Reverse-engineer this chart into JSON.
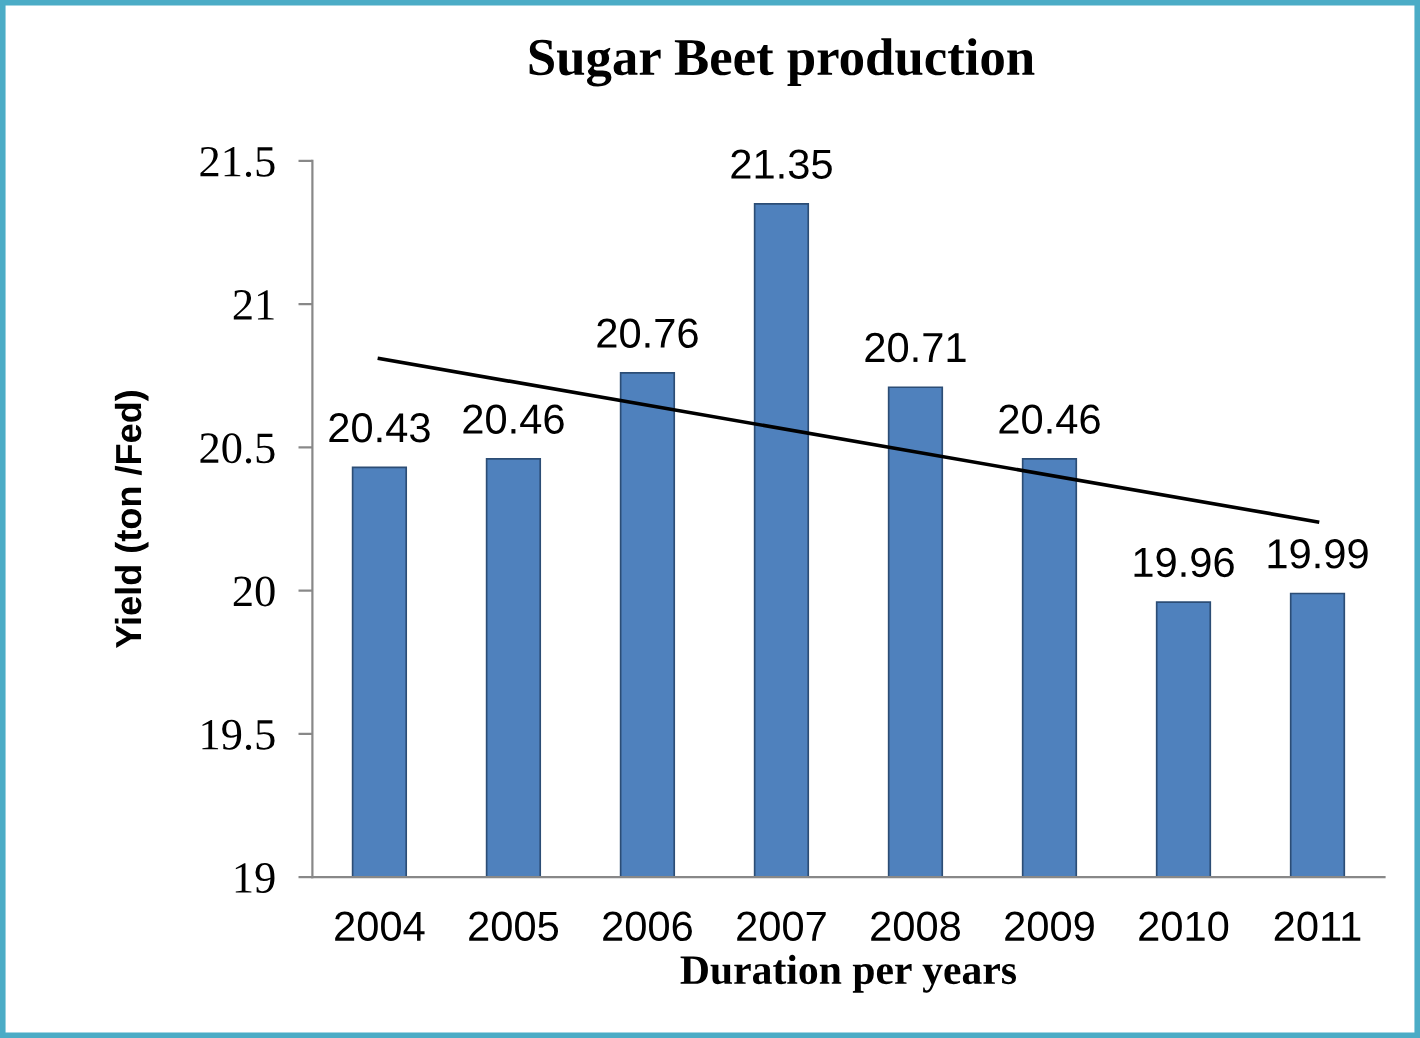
{
  "chart_data": {
    "type": "bar",
    "title": "Sugar Beet production",
    "xlabel": "Duration per years",
    "ylabel": "Yield (ton /Fed)",
    "categories": [
      "2004",
      "2005",
      "2006",
      "2007",
      "2008",
      "2009",
      "2010",
      "2011"
    ],
    "series": [
      {
        "color": "#4f81bd",
        "values": [
          20.43,
          20.46,
          20.76,
          21.35,
          20.71,
          20.46,
          19.96,
          19.99
        ],
        "value_labels": [
          "20.43",
          "20.46",
          "20.76",
          "21.35",
          "20.71",
          "20.46",
          "19.96",
          "19.99"
        ]
      },
      {
        "type": "line",
        "color": "#000000",
        "values": [
          20.81,
          null,
          null,
          null,
          null,
          null,
          null,
          20.24
        ]
      }
    ],
    "ylim": [
      19,
      21.5
    ],
    "yticks": [
      19,
      19.5,
      20,
      20.5,
      21,
      21.5
    ],
    "grid": false,
    "legend": false
  }
}
